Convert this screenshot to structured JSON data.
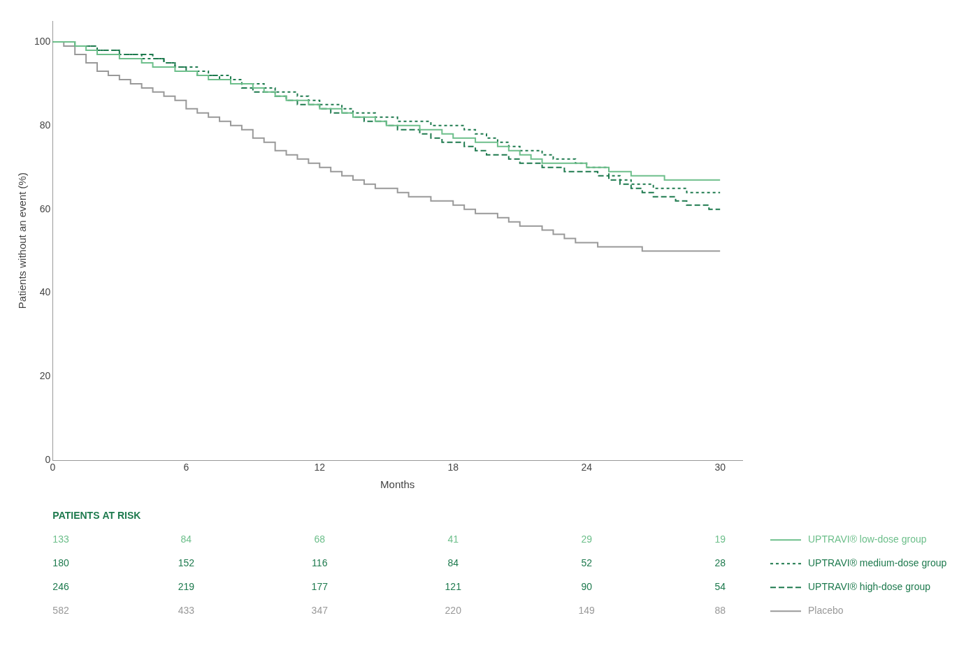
{
  "chart_data": {
    "type": "line",
    "line_style": "step",
    "ylabel": "Patients without an event (%)",
    "xlabel": "Months",
    "xlim": [
      0,
      31
    ],
    "ylim": [
      0,
      105
    ],
    "xticks": [
      0,
      6,
      12,
      18,
      24,
      30
    ],
    "yticks": [
      0,
      20,
      40,
      60,
      80,
      100
    ],
    "grid": false,
    "legend": "lower right",
    "x": [
      0,
      0.5,
      1,
      1.5,
      2,
      2.5,
      3,
      3.5,
      4,
      4.5,
      5,
      5.5,
      6,
      6.5,
      7,
      7.5,
      8,
      8.5,
      9,
      9.5,
      10,
      10.5,
      11,
      11.5,
      12,
      12.5,
      13,
      13.5,
      14,
      14.5,
      15,
      15.5,
      16,
      16.5,
      17,
      17.5,
      18,
      18.5,
      19,
      19.5,
      20,
      20.5,
      21,
      21.5,
      22,
      22.5,
      23,
      23.5,
      24,
      24.5,
      25,
      25.5,
      26,
      26.5,
      27,
      27.5,
      28,
      28.5,
      29,
      29.5,
      30
    ],
    "series": [
      {
        "name": "UPTRAVI® low-dose group",
        "color": "#6dbf8b",
        "line_style": "solid",
        "values": [
          100,
          100,
          99,
          98,
          97,
          97,
          96,
          96,
          95,
          94,
          94,
          93,
          93,
          92,
          91,
          91,
          90,
          90,
          89,
          88,
          87,
          86,
          86,
          85,
          84,
          84,
          83,
          82,
          82,
          81,
          80,
          80,
          80,
          79,
          79,
          78,
          77,
          77,
          76,
          76,
          75,
          74,
          73,
          72,
          71,
          71,
          71,
          71,
          70,
          70,
          69,
          69,
          68,
          68,
          68,
          67,
          67,
          67,
          67,
          67,
          67
        ],
        "at_risk": [
          133,
          84,
          68,
          41,
          29,
          19
        ]
      },
      {
        "name": "UPTRAVI® medium-dose group",
        "color": "#1e7a4e",
        "line_style": "dotted",
        "values": [
          100,
          100,
          99,
          99,
          98,
          98,
          97,
          97,
          96,
          96,
          95,
          94,
          94,
          93,
          92,
          92,
          91,
          90,
          90,
          89,
          88,
          88,
          87,
          86,
          85,
          85,
          84,
          83,
          83,
          82,
          82,
          81,
          81,
          81,
          80,
          80,
          80,
          79,
          78,
          77,
          76,
          75,
          74,
          74,
          73,
          72,
          72,
          71,
          70,
          70,
          68,
          67,
          66,
          66,
          65,
          65,
          65,
          64,
          64,
          64,
          64
        ],
        "at_risk": [
          180,
          152,
          116,
          84,
          52,
          28
        ]
      },
      {
        "name": "UPTRAVI® high-dose group",
        "color": "#1e7a4e",
        "line_style": "dashed",
        "values": [
          100,
          100,
          99,
          99,
          98,
          98,
          97,
          97,
          97,
          96,
          95,
          94,
          93,
          92,
          92,
          91,
          90,
          89,
          88,
          88,
          87,
          86,
          85,
          85,
          84,
          83,
          83,
          82,
          81,
          81,
          80,
          79,
          79,
          78,
          77,
          76,
          76,
          75,
          74,
          73,
          73,
          72,
          71,
          71,
          70,
          70,
          69,
          69,
          69,
          68,
          67,
          66,
          65,
          64,
          63,
          63,
          62,
          61,
          61,
          60,
          60
        ],
        "at_risk": [
          246,
          219,
          177,
          121,
          90,
          54
        ]
      },
      {
        "name": "Placebo",
        "color": "#999999",
        "line_style": "solid",
        "values": [
          100,
          99,
          97,
          95,
          93,
          92,
          91,
          90,
          89,
          88,
          87,
          86,
          84,
          83,
          82,
          81,
          80,
          79,
          77,
          76,
          74,
          73,
          72,
          71,
          70,
          69,
          68,
          67,
          66,
          65,
          65,
          64,
          63,
          63,
          62,
          62,
          61,
          60,
          59,
          59,
          58,
          57,
          56,
          56,
          55,
          54,
          53,
          52,
          52,
          51,
          51,
          51,
          51,
          50,
          50,
          50,
          50,
          50,
          50,
          50,
          50
        ],
        "at_risk": [
          582,
          433,
          347,
          220,
          149,
          88
        ]
      }
    ],
    "risk_header": "PATIENTS AT RISK",
    "risk_x": [
      0,
      6,
      12,
      18,
      24,
      30
    ]
  }
}
